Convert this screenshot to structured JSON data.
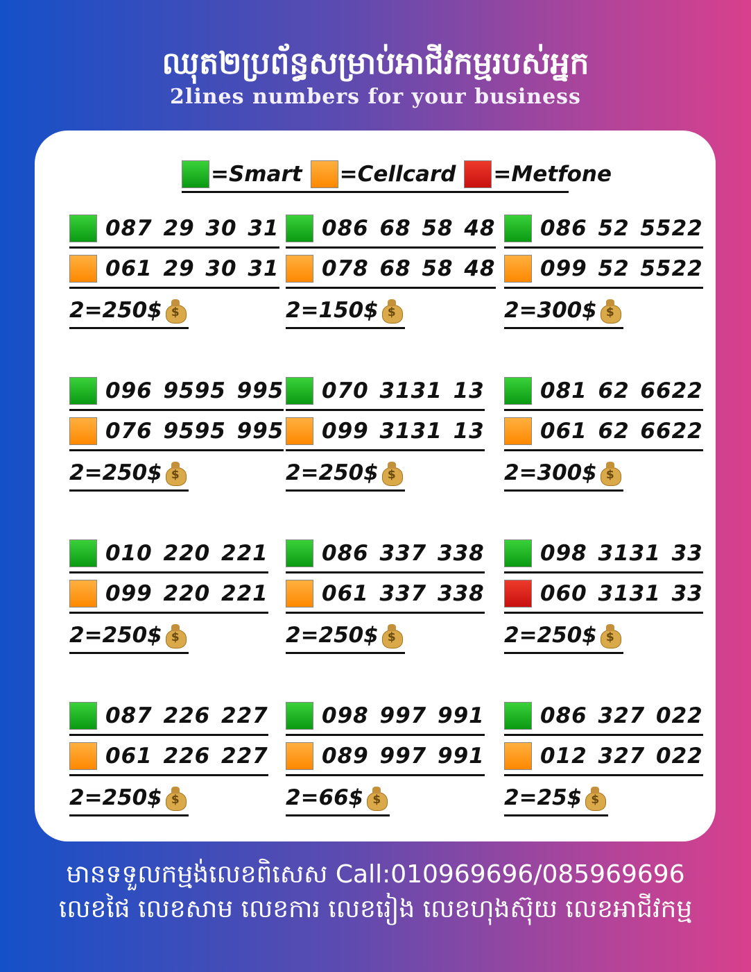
{
  "header": {
    "title": "ឈុត២ប្រព័ន្ធសម្រាប់អាជីវកម្មរបស់អ្នក",
    "subtitle": "2lines numbers for your business"
  },
  "legend": [
    {
      "color": "#1fb51f",
      "label": "=Smart"
    },
    {
      "color": "#ff9a1a",
      "label": "=Cellcard"
    },
    {
      "color": "#de2418",
      "label": "=Metfone"
    }
  ],
  "colors": {
    "smart": "#1fb51f",
    "cellcard": "#ff9a1a",
    "metfone": "#de2418"
  },
  "groups": [
    {
      "lines": [
        {
          "carrier": "smart",
          "number": "087 29 30 31"
        },
        {
          "carrier": "cellcard",
          "number": "061 29 30 31"
        }
      ],
      "price": "2=250$"
    },
    {
      "lines": [
        {
          "carrier": "smart",
          "number": "086 68 58 48"
        },
        {
          "carrier": "cellcard",
          "number": "078 68 58 48"
        }
      ],
      "price": "2=150$"
    },
    {
      "lines": [
        {
          "carrier": "smart",
          "number": "086 52 5522"
        },
        {
          "carrier": "cellcard",
          "number": "099 52 5522"
        }
      ],
      "price": "2=300$"
    },
    {
      "lines": [
        {
          "carrier": "smart",
          "number": "096 9595 995"
        },
        {
          "carrier": "cellcard",
          "number": "076 9595 995"
        }
      ],
      "price": "2=250$"
    },
    {
      "lines": [
        {
          "carrier": "smart",
          "number": "070 3131 13"
        },
        {
          "carrier": "cellcard",
          "number": "099 3131 13"
        }
      ],
      "price": "2=250$"
    },
    {
      "lines": [
        {
          "carrier": "smart",
          "number": "081 62 6622"
        },
        {
          "carrier": "cellcard",
          "number": "061 62 6622"
        }
      ],
      "price": "2=300$"
    },
    {
      "lines": [
        {
          "carrier": "smart",
          "number": "010 220 221"
        },
        {
          "carrier": "cellcard",
          "number": "099 220 221"
        }
      ],
      "price": "2=250$"
    },
    {
      "lines": [
        {
          "carrier": "smart",
          "number": "086 337 338"
        },
        {
          "carrier": "cellcard",
          "number": "061 337 338"
        }
      ],
      "price": "2=250$"
    },
    {
      "lines": [
        {
          "carrier": "smart",
          "number": "098 3131 33"
        },
        {
          "carrier": "metfone",
          "number": "060 3131 33"
        }
      ],
      "price": "2=250$"
    },
    {
      "lines": [
        {
          "carrier": "smart",
          "number": "087 226 227"
        },
        {
          "carrier": "cellcard",
          "number": "061 226 227"
        }
      ],
      "price": "2=250$"
    },
    {
      "lines": [
        {
          "carrier": "smart",
          "number": "098 997 991"
        },
        {
          "carrier": "cellcard",
          "number": "089 997 991"
        }
      ],
      "price": "2=66$"
    },
    {
      "lines": [
        {
          "carrier": "smart",
          "number": "086 327 022"
        },
        {
          "carrier": "cellcard",
          "number": "012 327 022"
        }
      ],
      "price": "2=25$"
    }
  ],
  "footer": {
    "line1": "មានទទួលកម្មង់លេខពិសេស Call:010969696/085969696",
    "line2": "លេខផៃ លេខសាម លេខការ លេខរៀង លេខហុងស៊ុយ លេខអាជីវកម្ម"
  }
}
